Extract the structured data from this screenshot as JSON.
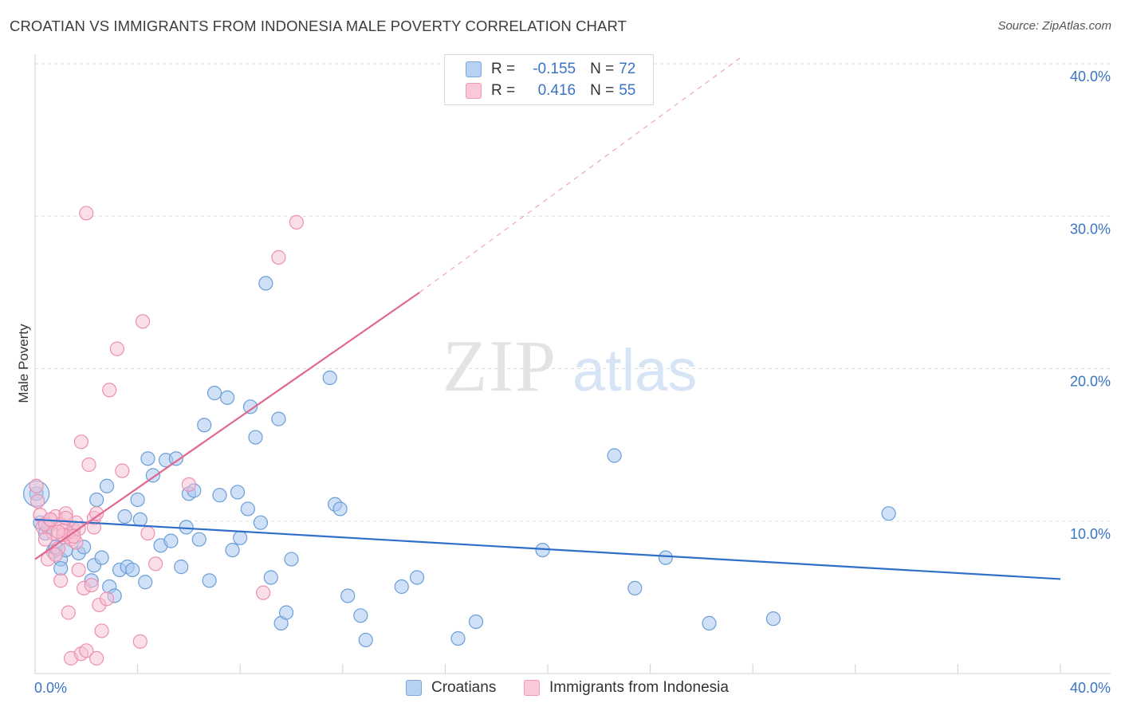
{
  "title": "CROATIAN VS IMMIGRANTS FROM INDONESIA MALE POVERTY CORRELATION CHART",
  "source": "Source: ZipAtlas.com",
  "watermark": {
    "zip": "ZIP",
    "atlas": "atlas"
  },
  "legend": {
    "rows": [
      {
        "r_label": "R =",
        "r_value": "-0.155",
        "n_label": "N =",
        "n_value": "72"
      },
      {
        "r_label": "R =",
        "r_value": "0.416",
        "n_label": "N =",
        "n_value": "55"
      }
    ]
  },
  "bottom_legend": [
    "Croatians",
    "Immigrants from Indonesia"
  ],
  "colors": {
    "blue_fill": "#aac8f0",
    "blue_stroke": "#6a9ed8",
    "blue_line": "#2f6fc9",
    "pink_fill": "#f7bfd1",
    "pink_stroke": "#ec8fb0",
    "pink_line": "#e0688f",
    "axis_text": "#3a74c4",
    "grid": "#dddddd"
  },
  "chart_data": {
    "type": "scatter",
    "title": "CROATIAN VS IMMIGRANTS FROM INDONESIA MALE POVERTY CORRELATION CHART",
    "xlabel": "",
    "ylabel": "Male Poverty",
    "xlim": [
      0,
      40
    ],
    "ylim": [
      0,
      40
    ],
    "x_tick_labels": [
      "0.0%",
      "40.0%"
    ],
    "y_ticks": [
      10,
      20,
      30,
      40
    ],
    "y_tick_labels": [
      "10.0%",
      "20.0%",
      "30.0%",
      "40.0%"
    ],
    "grid": true,
    "series": [
      {
        "name": "Croatians",
        "r": -0.155,
        "n": 72,
        "trend": {
          "x": [
            0,
            40
          ],
          "y": [
            10.1,
            6.2
          ]
        },
        "points": [
          [
            0.05,
            11.8
          ],
          [
            0.2,
            9.9
          ],
          [
            0.4,
            9.2
          ],
          [
            0.5,
            9.6
          ],
          [
            0.7,
            8.0
          ],
          [
            0.8,
            8.3
          ],
          [
            1.0,
            7.5
          ],
          [
            1.2,
            8.1
          ],
          [
            1.5,
            9.5
          ],
          [
            1.7,
            7.9
          ],
          [
            1.9,
            8.3
          ],
          [
            2.2,
            6.1
          ],
          [
            2.3,
            7.1
          ],
          [
            2.4,
            11.4
          ],
          [
            2.6,
            7.6
          ],
          [
            2.8,
            12.3
          ],
          [
            2.9,
            5.7
          ],
          [
            3.1,
            5.1
          ],
          [
            3.3,
            6.8
          ],
          [
            3.5,
            10.3
          ],
          [
            3.6,
            7.0
          ],
          [
            3.8,
            6.8
          ],
          [
            4.0,
            11.4
          ],
          [
            4.1,
            10.1
          ],
          [
            4.3,
            6.0
          ],
          [
            4.4,
            14.1
          ],
          [
            4.6,
            13.0
          ],
          [
            4.9,
            8.4
          ],
          [
            5.1,
            14.0
          ],
          [
            5.3,
            8.7
          ],
          [
            5.5,
            14.1
          ],
          [
            5.7,
            7.0
          ],
          [
            5.9,
            9.6
          ],
          [
            6.0,
            11.8
          ],
          [
            6.2,
            12.0
          ],
          [
            6.4,
            8.8
          ],
          [
            6.6,
            16.3
          ],
          [
            6.8,
            6.1
          ],
          [
            7.0,
            18.4
          ],
          [
            7.2,
            11.7
          ],
          [
            7.5,
            18.1
          ],
          [
            7.7,
            8.1
          ],
          [
            7.9,
            11.9
          ],
          [
            8.0,
            8.9
          ],
          [
            8.3,
            10.8
          ],
          [
            8.4,
            17.5
          ],
          [
            8.6,
            15.5
          ],
          [
            8.8,
            9.9
          ],
          [
            9.0,
            25.6
          ],
          [
            9.2,
            6.3
          ],
          [
            9.5,
            16.7
          ],
          [
            9.6,
            3.3
          ],
          [
            9.8,
            4.0
          ],
          [
            10.0,
            7.5
          ],
          [
            11.5,
            19.4
          ],
          [
            11.7,
            11.1
          ],
          [
            11.9,
            10.8
          ],
          [
            12.2,
            5.1
          ],
          [
            12.7,
            3.8
          ],
          [
            12.9,
            2.2
          ],
          [
            14.3,
            5.7
          ],
          [
            14.9,
            6.3
          ],
          [
            16.5,
            2.3
          ],
          [
            17.2,
            3.4
          ],
          [
            19.8,
            8.1
          ],
          [
            22.6,
            14.3
          ],
          [
            23.4,
            5.6
          ],
          [
            24.6,
            7.6
          ],
          [
            26.3,
            3.3
          ],
          [
            28.8,
            3.6
          ],
          [
            33.3,
            10.5
          ],
          [
            1.0,
            6.9
          ]
        ]
      },
      {
        "name": "Immigrants from Indonesia",
        "r": 0.416,
        "n": 55,
        "trend": {
          "x": [
            0,
            15
          ],
          "y": [
            7.5,
            25.0
          ]
        },
        "trend_extended": {
          "x": [
            15,
            27.6
          ],
          "y": [
            25.0,
            40.5
          ]
        },
        "points": [
          [
            0.05,
            12.3
          ],
          [
            0.1,
            11.3
          ],
          [
            0.2,
            10.4
          ],
          [
            0.3,
            9.6
          ],
          [
            0.4,
            9.8
          ],
          [
            0.5,
            7.5
          ],
          [
            0.6,
            10.1
          ],
          [
            0.7,
            9.2
          ],
          [
            0.8,
            10.3
          ],
          [
            0.9,
            8.2
          ],
          [
            1.0,
            9.8
          ],
          [
            1.1,
            9.4
          ],
          [
            1.2,
            10.5
          ],
          [
            1.3,
            9.0
          ],
          [
            1.4,
            8.8
          ],
          [
            1.5,
            9.3
          ],
          [
            1.6,
            8.6
          ],
          [
            1.7,
            6.8
          ],
          [
            1.8,
            15.2
          ],
          [
            1.9,
            5.6
          ],
          [
            2.0,
            30.2
          ],
          [
            2.1,
            13.7
          ],
          [
            2.2,
            5.8
          ],
          [
            2.3,
            10.2
          ],
          [
            2.4,
            10.5
          ],
          [
            2.5,
            4.5
          ],
          [
            2.6,
            2.8
          ],
          [
            2.8,
            4.9
          ],
          [
            2.9,
            18.6
          ],
          [
            3.2,
            21.3
          ],
          [
            3.4,
            13.3
          ],
          [
            4.1,
            2.1
          ],
          [
            4.2,
            23.1
          ],
          [
            4.4,
            9.2
          ],
          [
            4.7,
            7.2
          ],
          [
            6.0,
            12.4
          ],
          [
            8.9,
            5.3
          ],
          [
            9.5,
            27.3
          ],
          [
            10.2,
            29.6
          ],
          [
            1.3,
            4.0
          ],
          [
            1.4,
            1.0
          ],
          [
            1.8,
            1.3
          ],
          [
            2.0,
            1.5
          ],
          [
            2.4,
            1.0
          ],
          [
            0.6,
            10.1
          ],
          [
            1.1,
            9.1
          ],
          [
            0.4,
            8.8
          ],
          [
            1.6,
            9.9
          ],
          [
            0.9,
            9.3
          ],
          [
            2.3,
            9.6
          ],
          [
            1.2,
            10.2
          ],
          [
            1.0,
            6.1
          ],
          [
            1.7,
            9.5
          ],
          [
            0.8,
            7.8
          ],
          [
            1.5,
            9.0
          ]
        ]
      }
    ]
  }
}
